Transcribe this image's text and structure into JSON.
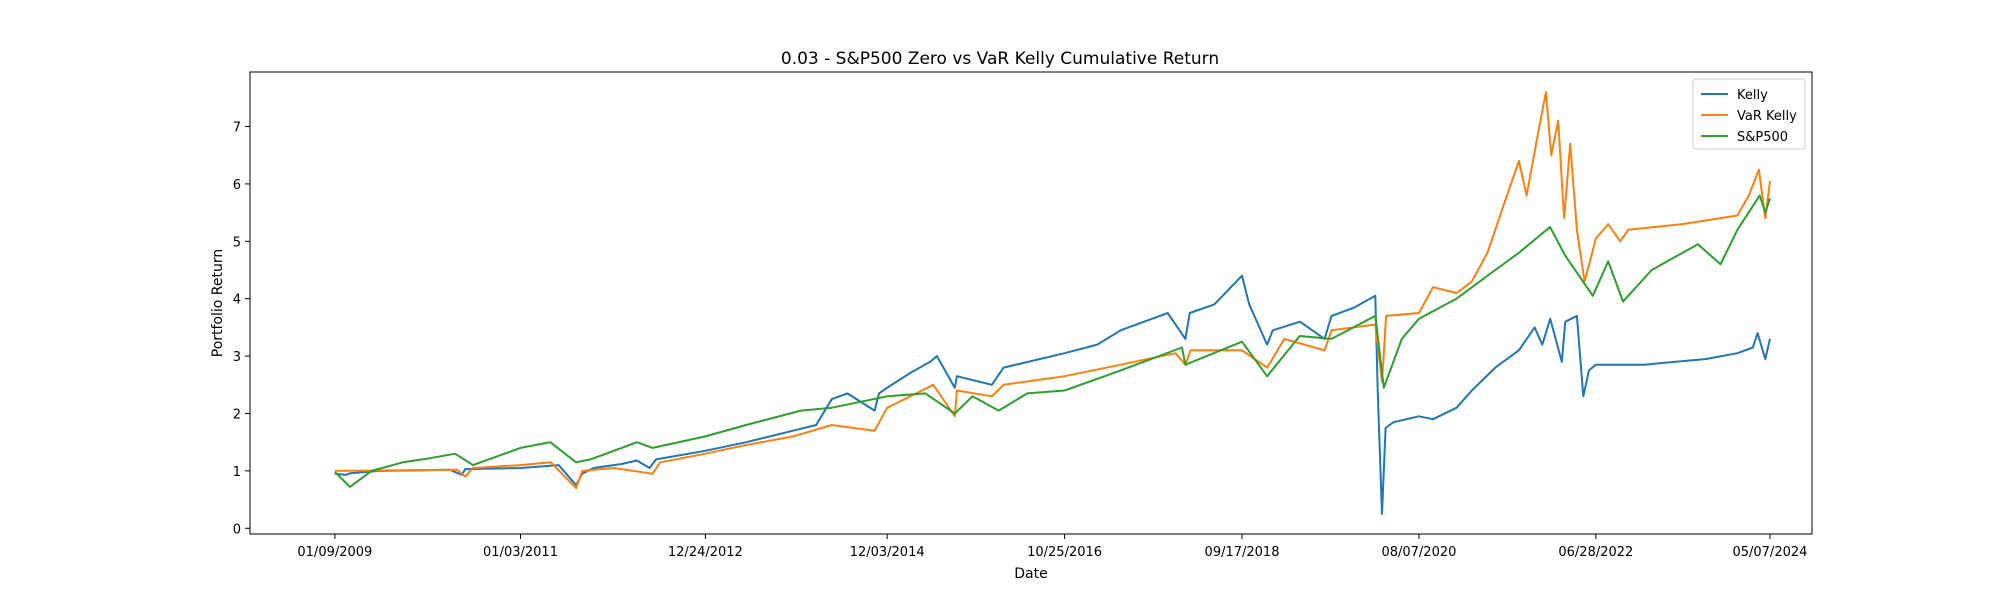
{
  "chart_data": {
    "type": "line",
    "title": "0.03 - S&P500 Zero vs VaR Kelly Cumulative Return",
    "xlabel": "Date",
    "ylabel": "Portfolio Return",
    "x_ticks": [
      "01/09/2009",
      "01/03/2011",
      "12/24/2012",
      "12/03/2014",
      "10/25/2016",
      "09/17/2018",
      "08/07/2020",
      "06/28/2022",
      "05/07/2024"
    ],
    "xlim": [
      "2008-02-13",
      "2024-10-18"
    ],
    "ylim": [
      -0.1,
      7.95
    ],
    "y_ticks": [
      0,
      1,
      2,
      3,
      4,
      5,
      6,
      7
    ],
    "grid": false,
    "legend_position": "top-right",
    "series": [
      {
        "name": "Kelly",
        "color": "#1f77b4",
        "points": [
          [
            "2009-01-09",
            0.95
          ],
          [
            "2009-02-20",
            0.93
          ],
          [
            "2009-03-10",
            0.96
          ],
          [
            "2009-07-01",
            1.0
          ],
          [
            "2010-04-01",
            1.02
          ],
          [
            "2010-05-20",
            0.93
          ],
          [
            "2010-06-01",
            1.03
          ],
          [
            "2011-01-03",
            1.05
          ],
          [
            "2011-06-01",
            1.1
          ],
          [
            "2011-08-08",
            0.75
          ],
          [
            "2011-09-01",
            0.95
          ],
          [
            "2011-10-15",
            1.05
          ],
          [
            "2012-02-01",
            1.12
          ],
          [
            "2012-04-01",
            1.18
          ],
          [
            "2012-05-20",
            1.05
          ],
          [
            "2012-06-15",
            1.2
          ],
          [
            "2012-12-24",
            1.35
          ],
          [
            "2013-06-01",
            1.5
          ],
          [
            "2013-12-01",
            1.7
          ],
          [
            "2014-03-01",
            1.8
          ],
          [
            "2014-05-01",
            2.25
          ],
          [
            "2014-07-01",
            2.35
          ],
          [
            "2014-10-15",
            2.05
          ],
          [
            "2014-11-01",
            2.35
          ],
          [
            "2014-12-03",
            2.45
          ],
          [
            "2015-03-01",
            2.7
          ],
          [
            "2015-05-20",
            2.9
          ],
          [
            "2015-06-15",
            3.0
          ],
          [
            "2015-08-24",
            2.45
          ],
          [
            "2015-09-01",
            2.65
          ],
          [
            "2016-01-15",
            2.5
          ],
          [
            "2016-03-01",
            2.8
          ],
          [
            "2016-10-25",
            3.05
          ],
          [
            "2017-03-01",
            3.2
          ],
          [
            "2017-06-01",
            3.45
          ],
          [
            "2017-12-01",
            3.75
          ],
          [
            "2018-02-08",
            3.3
          ],
          [
            "2018-02-25",
            3.75
          ],
          [
            "2018-06-01",
            3.9
          ],
          [
            "2018-09-17",
            4.4
          ],
          [
            "2018-10-15",
            3.9
          ],
          [
            "2018-12-24",
            3.2
          ],
          [
            "2019-01-15",
            3.45
          ],
          [
            "2019-05-01",
            3.6
          ],
          [
            "2019-08-05",
            3.3
          ],
          [
            "2019-09-01",
            3.7
          ],
          [
            "2019-12-01",
            3.85
          ],
          [
            "2020-02-19",
            4.05
          ],
          [
            "2020-02-28",
            2.4
          ],
          [
            "2020-03-16",
            0.25
          ],
          [
            "2020-03-30",
            1.75
          ],
          [
            "2020-05-01",
            1.85
          ],
          [
            "2020-08-07",
            1.95
          ],
          [
            "2020-10-01",
            1.9
          ],
          [
            "2021-01-01",
            2.1
          ],
          [
            "2021-03-01",
            2.4
          ],
          [
            "2021-06-01",
            2.8
          ],
          [
            "2021-09-01",
            3.1
          ],
          [
            "2021-11-01",
            3.5
          ],
          [
            "2021-12-01",
            3.2
          ],
          [
            "2022-01-01",
            3.65
          ],
          [
            "2022-02-15",
            2.9
          ],
          [
            "2022-03-01",
            3.6
          ],
          [
            "2022-04-15",
            3.7
          ],
          [
            "2022-05-10",
            2.3
          ],
          [
            "2022-06-01",
            2.75
          ],
          [
            "2022-06-28",
            2.85
          ],
          [
            "2023-01-01",
            2.85
          ],
          [
            "2023-09-01",
            2.95
          ],
          [
            "2024-01-01",
            3.05
          ],
          [
            "2024-03-01",
            3.15
          ],
          [
            "2024-03-20",
            3.4
          ],
          [
            "2024-04-19",
            2.95
          ],
          [
            "2024-05-07",
            3.3
          ]
        ]
      },
      {
        "name": "VaR Kelly",
        "color": "#ff7f0e",
        "points": [
          [
            "2009-01-09",
            1.0
          ],
          [
            "2010-05-01",
            1.02
          ],
          [
            "2010-06-01",
            0.9
          ],
          [
            "2010-07-01",
            1.05
          ],
          [
            "2011-01-03",
            1.1
          ],
          [
            "2011-05-01",
            1.15
          ],
          [
            "2011-08-08",
            0.7
          ],
          [
            "2011-09-01",
            1.0
          ],
          [
            "2012-01-01",
            1.05
          ],
          [
            "2012-06-01",
            0.95
          ],
          [
            "2012-07-01",
            1.15
          ],
          [
            "2012-12-24",
            1.3
          ],
          [
            "2013-06-01",
            1.45
          ],
          [
            "2013-12-01",
            1.6
          ],
          [
            "2014-05-01",
            1.8
          ],
          [
            "2014-10-15",
            1.7
          ],
          [
            "2014-12-03",
            2.1
          ],
          [
            "2015-06-01",
            2.5
          ],
          [
            "2015-08-24",
            1.95
          ],
          [
            "2015-09-01",
            2.4
          ],
          [
            "2016-01-15",
            2.3
          ],
          [
            "2016-03-01",
            2.5
          ],
          [
            "2016-10-25",
            2.65
          ],
          [
            "2017-06-01",
            2.85
          ],
          [
            "2018-01-01",
            3.05
          ],
          [
            "2018-02-08",
            2.85
          ],
          [
            "2018-03-01",
            3.1
          ],
          [
            "2018-09-17",
            3.1
          ],
          [
            "2018-12-24",
            2.8
          ],
          [
            "2019-03-01",
            3.3
          ],
          [
            "2019-08-05",
            3.1
          ],
          [
            "2019-09-01",
            3.45
          ],
          [
            "2020-02-19",
            3.55
          ],
          [
            "2020-03-16",
            2.55
          ],
          [
            "2020-04-01",
            3.7
          ],
          [
            "2020-08-07",
            3.75
          ],
          [
            "2020-10-01",
            4.2
          ],
          [
            "2021-01-01",
            4.1
          ],
          [
            "2021-03-01",
            4.3
          ],
          [
            "2021-05-01",
            4.8
          ],
          [
            "2021-07-01",
            5.6
          ],
          [
            "2021-09-01",
            6.4
          ],
          [
            "2021-10-01",
            5.8
          ],
          [
            "2021-11-15",
            6.9
          ],
          [
            "2021-12-15",
            7.6
          ],
          [
            "2022-01-05",
            6.5
          ],
          [
            "2022-02-01",
            7.1
          ],
          [
            "2022-02-24",
            5.4
          ],
          [
            "2022-03-20",
            6.7
          ],
          [
            "2022-04-15",
            5.2
          ],
          [
            "2022-05-15",
            4.3
          ],
          [
            "2022-06-28",
            5.05
          ],
          [
            "2022-08-15",
            5.3
          ],
          [
            "2022-10-01",
            5.0
          ],
          [
            "2022-11-01",
            5.2
          ],
          [
            "2023-06-01",
            5.3
          ],
          [
            "2024-01-01",
            5.45
          ],
          [
            "2024-02-15",
            5.8
          ],
          [
            "2024-03-25",
            6.25
          ],
          [
            "2024-04-19",
            5.4
          ],
          [
            "2024-05-07",
            6.05
          ]
        ]
      },
      {
        "name": "S&P500",
        "color": "#2ca02c",
        "points": [
          [
            "2009-01-09",
            0.98
          ],
          [
            "2009-03-09",
            0.72
          ],
          [
            "2009-06-01",
            1.0
          ],
          [
            "2009-10-01",
            1.15
          ],
          [
            "2010-01-15",
            1.22
          ],
          [
            "2010-04-23",
            1.3
          ],
          [
            "2010-07-02",
            1.1
          ],
          [
            "2011-01-03",
            1.4
          ],
          [
            "2011-04-29",
            1.5
          ],
          [
            "2011-08-08",
            1.15
          ],
          [
            "2011-10-03",
            1.2
          ],
          [
            "2012-04-01",
            1.5
          ],
          [
            "2012-06-01",
            1.4
          ],
          [
            "2012-12-24",
            1.6
          ],
          [
            "2013-06-01",
            1.8
          ],
          [
            "2013-12-31",
            2.05
          ],
          [
            "2014-05-01",
            2.1
          ],
          [
            "2014-12-03",
            2.3
          ],
          [
            "2015-05-01",
            2.35
          ],
          [
            "2015-08-24",
            2.0
          ],
          [
            "2015-11-01",
            2.3
          ],
          [
            "2016-02-11",
            2.05
          ],
          [
            "2016-06-01",
            2.35
          ],
          [
            "2016-10-25",
            2.4
          ],
          [
            "2017-06-01",
            2.75
          ],
          [
            "2018-01-26",
            3.15
          ],
          [
            "2018-02-08",
            2.85
          ],
          [
            "2018-09-17",
            3.25
          ],
          [
            "2018-12-24",
            2.65
          ],
          [
            "2019-04-30",
            3.35
          ],
          [
            "2019-09-01",
            3.3
          ],
          [
            "2020-02-19",
            3.7
          ],
          [
            "2020-03-23",
            2.45
          ],
          [
            "2020-06-01",
            3.3
          ],
          [
            "2020-08-07",
            3.65
          ],
          [
            "2020-12-31",
            4.0
          ],
          [
            "2021-06-01",
            4.5
          ],
          [
            "2021-09-01",
            4.8
          ],
          [
            "2021-12-31",
            5.25
          ],
          [
            "2022-03-01",
            4.75
          ],
          [
            "2022-06-16",
            4.05
          ],
          [
            "2022-08-15",
            4.65
          ],
          [
            "2022-10-12",
            3.95
          ],
          [
            "2023-02-01",
            4.5
          ],
          [
            "2023-07-31",
            4.95
          ],
          [
            "2023-10-27",
            4.6
          ],
          [
            "2024-01-01",
            5.2
          ],
          [
            "2024-03-28",
            5.8
          ],
          [
            "2024-04-19",
            5.5
          ],
          [
            "2024-05-07",
            5.75
          ]
        ]
      }
    ]
  }
}
